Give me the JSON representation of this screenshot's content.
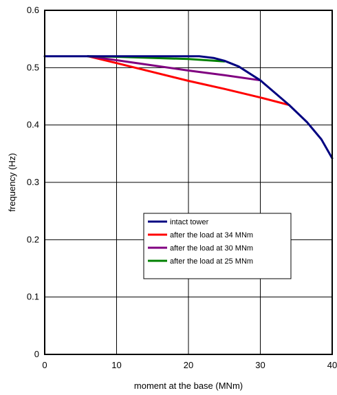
{
  "chart_data": {
    "type": "line",
    "xlabel": "moment at the base (MNm)",
    "ylabel": "frequency (Hz)",
    "xlim": [
      0,
      40
    ],
    "ylim": [
      0,
      0.6
    ],
    "x_ticks": [
      "0",
      "10",
      "20",
      "30",
      "40"
    ],
    "y_ticks": [
      "0",
      "0.1",
      "0.2",
      "0.3",
      "0.4",
      "0.5",
      "0.6"
    ],
    "grid": true,
    "legend_placement": "center-right",
    "series": [
      {
        "name": "intact tower",
        "color": "#000080",
        "points": [
          [
            0,
            0.52
          ],
          [
            6,
            0.52
          ],
          [
            21.5,
            0.52
          ],
          [
            23.5,
            0.517
          ],
          [
            25,
            0.512
          ],
          [
            27,
            0.502
          ],
          [
            30,
            0.478
          ],
          [
            34,
            0.435
          ],
          [
            36.5,
            0.405
          ],
          [
            38.5,
            0.375
          ],
          [
            40,
            0.342
          ]
        ]
      },
      {
        "name": "after the load at 34 MNm",
        "color": "#ff0000",
        "points": [
          [
            6,
            0.52
          ],
          [
            10,
            0.508
          ],
          [
            20,
            0.477
          ],
          [
            25,
            0.463
          ],
          [
            30,
            0.448
          ],
          [
            34,
            0.435
          ]
        ]
      },
      {
        "name": "after the load at 30 MNm",
        "color": "#800080",
        "points": [
          [
            6,
            0.52
          ],
          [
            10,
            0.513
          ],
          [
            20,
            0.495
          ],
          [
            25,
            0.487
          ],
          [
            30,
            0.478
          ]
        ]
      },
      {
        "name": "after the load at 25 MNm",
        "color": "#008000",
        "points": [
          [
            6,
            0.52
          ],
          [
            10,
            0.519
          ],
          [
            20,
            0.515
          ],
          [
            25,
            0.511
          ]
        ]
      }
    ]
  }
}
